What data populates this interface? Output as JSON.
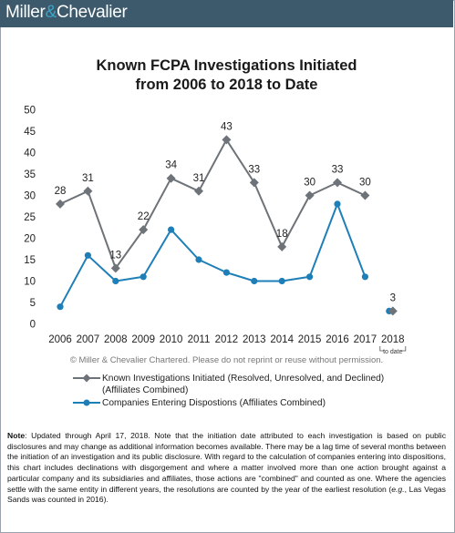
{
  "header": {
    "brand_left": "Miller",
    "brand_amp": "&",
    "brand_right": "Chevalier"
  },
  "chart_data": {
    "type": "line",
    "title_line1": "Known FCPA Investigations Initiated",
    "title_line2": "from 2006 to 2018 to Date",
    "categories": [
      "2006",
      "2007",
      "2008",
      "2009",
      "2010",
      "2011",
      "2012",
      "2013",
      "2014",
      "2015",
      "2016",
      "2017",
      "2018"
    ],
    "x_sublabel_2018": "to date",
    "ylim": [
      0,
      50
    ],
    "yticks": [
      0,
      5,
      10,
      15,
      20,
      25,
      30,
      35,
      40,
      45,
      50
    ],
    "series": [
      {
        "name": "Known Investigations Initiated (Resolved, Unresolved, and Declined) (Affiliates Combined)",
        "color": "#6d7378",
        "marker": "diamond",
        "values": [
          28,
          31,
          13,
          22,
          34,
          31,
          43,
          33,
          18,
          30,
          33,
          30,
          3
        ],
        "labels": [
          "28",
          "31",
          "13",
          "22",
          "34",
          "31",
          "43",
          "33",
          "18",
          "30",
          "33",
          "30",
          "3"
        ],
        "connected_through": 11
      },
      {
        "name": "Companies Entering Dispostions (Affiliates Combined)",
        "color": "#1e7fb8",
        "marker": "circle",
        "values": [
          4,
          16,
          10,
          11,
          22,
          15,
          12,
          10,
          10,
          11,
          28,
          11,
          3
        ],
        "connected_through": 11
      }
    ],
    "legend_lines": [
      [
        "Known Investigations Initiated (Resolved, Unresolved, and Declined)",
        "(Affiliates Combined)"
      ],
      [
        "Companies Entering Dispostions (Affiliates Combined)"
      ]
    ]
  },
  "copyright": "© Miller & Chevalier Chartered. Please do not reprint or reuse without permission.",
  "note": {
    "label": "Note",
    "text_before_eg": ": Updated through April 17, 2018. Note that the initiation date attributed to each investigation is based on public disclosures and may change as additional information becomes available. There may be a lag time of several months between the initiation of an investigation and its public disclosure. With regard to the calculation of companies entering into dispositions, this chart includes declinations with disgorgement and where a matter involved more than one action brought against a particular company and its subsidiaries and affiliates, those actions are \"combined\" and counted as one. Where the agencies settle with the same entity in different years, the resolutions are counted by the year of the earliest resolution (",
    "eg": "e.g.",
    "text_after_eg": ", Las Vegas Sands was counted in 2016)."
  }
}
